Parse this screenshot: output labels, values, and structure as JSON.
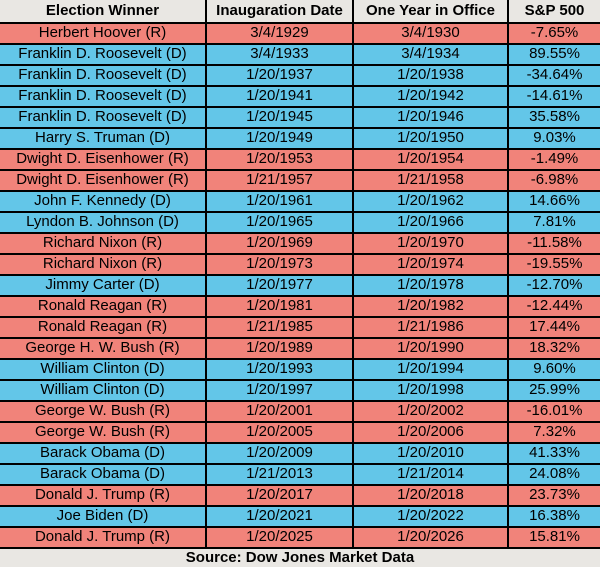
{
  "chart_data": {
    "type": "table",
    "columns": [
      "Election Winner",
      "Inaugaration Date",
      "One Year in Office",
      "S&P 500"
    ],
    "rows": [
      {
        "winner": "Herbert Hoover (R)",
        "party": "R",
        "inauguration_date": "3/4/1929",
        "one_year_in_office": "3/4/1930",
        "sp500": "-7.65%"
      },
      {
        "winner": "Franklin D. Roosevelt (D)",
        "party": "D",
        "inauguration_date": "3/4/1933",
        "one_year_in_office": "3/4/1934",
        "sp500": "89.55%"
      },
      {
        "winner": "Franklin D. Roosevelt (D)",
        "party": "D",
        "inauguration_date": "1/20/1937",
        "one_year_in_office": "1/20/1938",
        "sp500": "-34.64%"
      },
      {
        "winner": "Franklin D. Roosevelt (D)",
        "party": "D",
        "inauguration_date": "1/20/1941",
        "one_year_in_office": "1/20/1942",
        "sp500": "-14.61%"
      },
      {
        "winner": "Franklin D. Roosevelt (D)",
        "party": "D",
        "inauguration_date": "1/20/1945",
        "one_year_in_office": "1/20/1946",
        "sp500": "35.58%"
      },
      {
        "winner": "Harry S. Truman (D)",
        "party": "D",
        "inauguration_date": "1/20/1949",
        "one_year_in_office": "1/20/1950",
        "sp500": "9.03%"
      },
      {
        "winner": "Dwight D. Eisenhower (R)",
        "party": "R",
        "inauguration_date": "1/20/1953",
        "one_year_in_office": "1/20/1954",
        "sp500": "-1.49%"
      },
      {
        "winner": "Dwight D. Eisenhower (R)",
        "party": "R",
        "inauguration_date": "1/21/1957",
        "one_year_in_office": "1/21/1958",
        "sp500": "-6.98%"
      },
      {
        "winner": "John F. Kennedy (D)",
        "party": "D",
        "inauguration_date": "1/20/1961",
        "one_year_in_office": "1/20/1962",
        "sp500": "14.66%"
      },
      {
        "winner": "Lyndon B. Johnson (D)",
        "party": "D",
        "inauguration_date": "1/20/1965",
        "one_year_in_office": "1/20/1966",
        "sp500": "7.81%"
      },
      {
        "winner": "Richard Nixon (R)",
        "party": "R",
        "inauguration_date": "1/20/1969",
        "one_year_in_office": "1/20/1970",
        "sp500": "-11.58%"
      },
      {
        "winner": "Richard Nixon (R)",
        "party": "R",
        "inauguration_date": "1/20/1973",
        "one_year_in_office": "1/20/1974",
        "sp500": "-19.55%"
      },
      {
        "winner": "Jimmy Carter (D)",
        "party": "D",
        "inauguration_date": "1/20/1977",
        "one_year_in_office": "1/20/1978",
        "sp500": "-12.70%"
      },
      {
        "winner": "Ronald Reagan (R)",
        "party": "R",
        "inauguration_date": "1/20/1981",
        "one_year_in_office": "1/20/1982",
        "sp500": "-12.44%"
      },
      {
        "winner": "Ronald Reagan (R)",
        "party": "R",
        "inauguration_date": "1/21/1985",
        "one_year_in_office": "1/21/1986",
        "sp500": "17.44%"
      },
      {
        "winner": "George H. W. Bush (R)",
        "party": "R",
        "inauguration_date": "1/20/1989",
        "one_year_in_office": "1/20/1990",
        "sp500": "18.32%"
      },
      {
        "winner": "William Clinton (D)",
        "party": "D",
        "inauguration_date": "1/20/1993",
        "one_year_in_office": "1/20/1994",
        "sp500": "9.60%"
      },
      {
        "winner": "William Clinton (D)",
        "party": "D",
        "inauguration_date": "1/20/1997",
        "one_year_in_office": "1/20/1998",
        "sp500": "25.99%"
      },
      {
        "winner": "George W. Bush (R)",
        "party": "R",
        "inauguration_date": "1/20/2001",
        "one_year_in_office": "1/20/2002",
        "sp500": "-16.01%"
      },
      {
        "winner": "George W. Bush (R)",
        "party": "R",
        "inauguration_date": "1/20/2005",
        "one_year_in_office": "1/20/2006",
        "sp500": "7.32%"
      },
      {
        "winner": "Barack Obama (D)",
        "party": "D",
        "inauguration_date": "1/20/2009",
        "one_year_in_office": "1/20/2010",
        "sp500": "41.33%"
      },
      {
        "winner": "Barack Obama (D)",
        "party": "D",
        "inauguration_date": "1/21/2013",
        "one_year_in_office": "1/21/2014",
        "sp500": "24.08%"
      },
      {
        "winner": "Donald J. Trump (R)",
        "party": "R",
        "inauguration_date": "1/20/2017",
        "one_year_in_office": "1/20/2018",
        "sp500": "23.73%"
      },
      {
        "winner": "Joe Biden (D)",
        "party": "D",
        "inauguration_date": "1/20/2021",
        "one_year_in_office": "1/20/2022",
        "sp500": "16.38%"
      },
      {
        "winner": "Donald J. Trump (R)",
        "party": "R",
        "inauguration_date": "1/20/2025",
        "one_year_in_office": "1/20/2026",
        "sp500": "15.81%"
      }
    ],
    "source_note": "Source: Dow Jones Market Data"
  },
  "colors": {
    "republican_row": "#F1837A",
    "democrat_row": "#63C6E8",
    "header_bg": "#E9E7E3",
    "border": "#000000",
    "text": "#000000"
  }
}
